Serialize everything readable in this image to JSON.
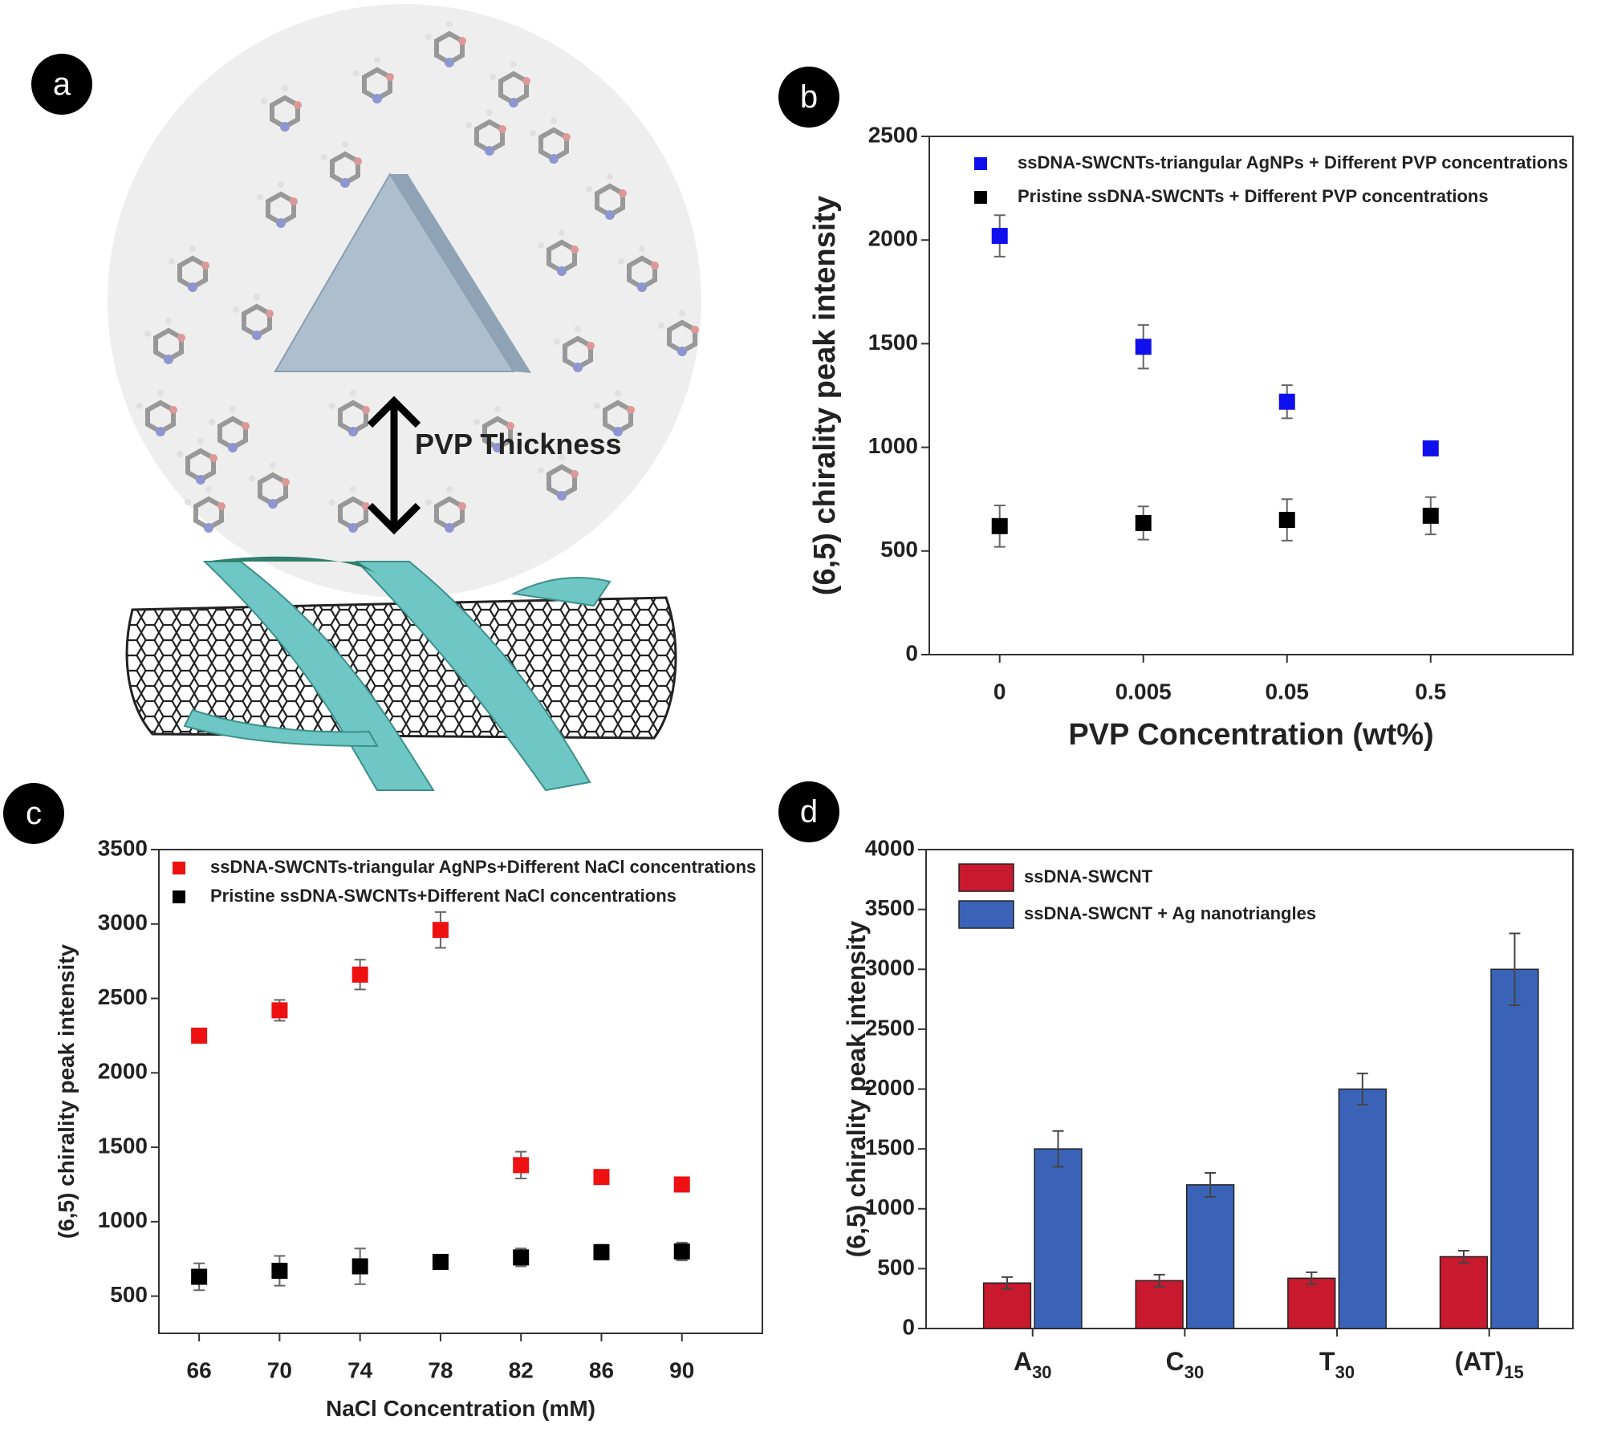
{
  "illustration": {
    "panel": "a",
    "label": "PVP Thickness"
  },
  "chart_data": [
    {
      "type": "scatter",
      "panel": "b",
      "categories": [
        "0",
        "0.005",
        "0.05",
        "0.5"
      ],
      "x_label": "PVP Concentration (wt%)",
      "y_label": "(6,5) chirality peak intensity",
      "ylim": [
        0,
        2500
      ],
      "yticks": [
        0,
        500,
        1000,
        1500,
        2000,
        2500
      ],
      "series": [
        {
          "name": "ssDNA-SWCNTs-triangular AgNPs + Different PVP concentrations",
          "color": "#1010ee",
          "values": [
            2020,
            1485,
            1220,
            995
          ],
          "errors": [
            100,
            105,
            80,
            30
          ]
        },
        {
          "name": "Pristine ssDNA-SWCNTs + Different PVP concentrations",
          "color": "#000000",
          "values": [
            620,
            635,
            650,
            670
          ],
          "errors": [
            100,
            80,
            100,
            90
          ]
        }
      ]
    },
    {
      "type": "scatter",
      "panel": "c",
      "x": [
        66,
        70,
        74,
        78,
        82,
        86,
        90
      ],
      "x_label": "NaCl Concentration (mM)",
      "y_label": "(6,5) chirality peak intensity",
      "xlim": [
        64,
        94
      ],
      "xticks": [
        66,
        70,
        74,
        78,
        82,
        86,
        90
      ],
      "ylim": [
        250,
        3500
      ],
      "yticks": [
        500,
        1000,
        1500,
        2000,
        2500,
        3000,
        3500
      ],
      "series": [
        {
          "name": "ssDNA-SWCNTs-triangular AgNPs+Different NaCl concentrations",
          "color": "#ee1111",
          "values": [
            2250,
            2420,
            2660,
            2960,
            1380,
            1300,
            1250
          ],
          "errors": [
            20,
            70,
            100,
            120,
            90,
            40,
            20
          ]
        },
        {
          "name": "Pristine ssDNA-SWCNTs+Different NaCl concentrations",
          "color": "#000000",
          "values": [
            630,
            670,
            700,
            730,
            760,
            795,
            800
          ],
          "errors": [
            90,
            100,
            120,
            30,
            60,
            50,
            60
          ]
        }
      ]
    },
    {
      "type": "bar",
      "panel": "d",
      "categories": [
        {
          "text": "A",
          "sub": "30"
        },
        {
          "text": "C",
          "sub": "30"
        },
        {
          "text": "T",
          "sub": "30"
        },
        {
          "text": "(AT)",
          "sub": "15"
        }
      ],
      "y_label": "(6,5) chirality peak intensity",
      "ylim": [
        0,
        4000
      ],
      "yticks": [
        0,
        500,
        1000,
        1500,
        2000,
        2500,
        3000,
        3500,
        4000
      ],
      "series": [
        {
          "name": "ssDNA-SWCNT",
          "color": "#c8192e",
          "values": [
            380,
            400,
            420,
            600
          ],
          "errors": [
            50,
            50,
            50,
            50
          ]
        },
        {
          "name": "ssDNA-SWCNT + Ag nanotriangles",
          "color": "#3a63b8",
          "values": [
            1500,
            1200,
            2000,
            3000
          ],
          "errors": [
            150,
            100,
            130,
            300
          ]
        }
      ]
    }
  ]
}
